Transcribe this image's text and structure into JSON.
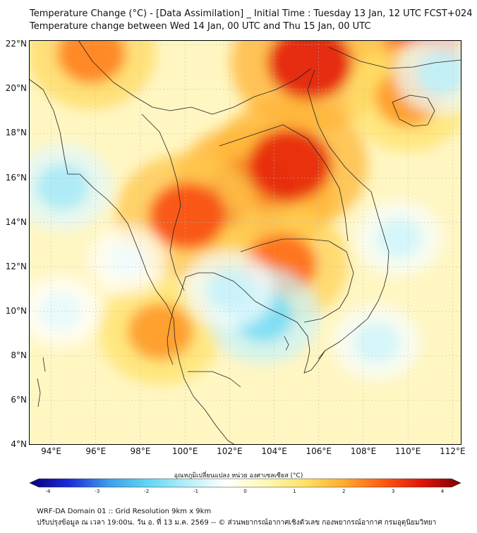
{
  "header": {
    "title_line1": "Temperature Change (°C) - [Data Assimilation] _ Initial Time : Tuesday 13 Jan, 12 UTC FCST+024",
    "title_line2": "Temperature change between Wed 14 Jan, 00 UTC and Thu 15 Jan, 00 UTC"
  },
  "map": {
    "lat_labels": [
      "22°N",
      "20°N",
      "18°N",
      "16°N",
      "14°N",
      "12°N",
      "10°N",
      "8°N",
      "6°N",
      "4°N"
    ],
    "lat_values": [
      22,
      20,
      18,
      16,
      14,
      12,
      10,
      8,
      6,
      4
    ],
    "lon_labels": [
      "94°E",
      "96°E",
      "98°E",
      "100°E",
      "102°E",
      "104°E",
      "106°E",
      "108°E",
      "110°E",
      "112°E"
    ],
    "lon_values": [
      94,
      96,
      98,
      100,
      102,
      104,
      106,
      108,
      110,
      112
    ],
    "extent": {
      "lon_min": 93,
      "lon_max": 112.4,
      "lat_min": 4,
      "lat_max": 22.2
    },
    "field": {
      "units": "°C",
      "hotspots": [
        {
          "lon": 103.0,
          "lat": 15.3,
          "value": 3.3
        },
        {
          "lon": 104.7,
          "lat": 16.6,
          "value": 3.1
        },
        {
          "lon": 105.6,
          "lat": 21.2,
          "value": 3.2
        },
        {
          "lon": 100.1,
          "lat": 14.3,
          "value": 2.7
        },
        {
          "lon": 95.8,
          "lat": 21.6,
          "value": 2.2
        },
        {
          "lon": 110.6,
          "lat": 21.8,
          "value": 2.6
        },
        {
          "lon": 104.3,
          "lat": 12.1,
          "value": 2.4
        },
        {
          "lon": 98.9,
          "lat": 9.1,
          "value": 2.0
        },
        {
          "lon": 110.0,
          "lat": 19.6,
          "value": 2.0
        },
        {
          "lon": 103.5,
          "lat": 9.8,
          "value": -1.6
        },
        {
          "lon": 94.5,
          "lat": 15.6,
          "value": -1.2
        },
        {
          "lon": 102.0,
          "lat": 11.0,
          "value": -0.9
        },
        {
          "lon": 111.5,
          "lat": 20.7,
          "value": -1.0
        },
        {
          "lon": 109.6,
          "lat": 13.3,
          "value": -0.8
        },
        {
          "lon": 108.6,
          "lat": 8.6,
          "value": -0.8
        },
        {
          "lon": 97.4,
          "lat": 12.3,
          "value": -0.5
        },
        {
          "lon": 94.4,
          "lat": 10.0,
          "value": -0.6
        }
      ]
    }
  },
  "colorbar": {
    "title": "อุณหภูมิเปลี่ยนแปลง หน่วย องศาเซลเซียส (°C)",
    "ticks": [
      "-4",
      "-3",
      "-2",
      "-1",
      "0",
      "1",
      "2",
      "3",
      "4"
    ],
    "range": [
      -4,
      4
    ],
    "colors": [
      "#060078",
      "#1a2cd8",
      "#3d9ce8",
      "#5fd6f4",
      "#b4eef8",
      "#ffffff",
      "#fff8b8",
      "#ffe26a",
      "#ffad2e",
      "#ff5a12",
      "#e0150a",
      "#7a0000"
    ]
  },
  "footer": {
    "line1": "WRF-DA Domain 01 :: Grid Resolution 9km x 9km",
    "line2": "ปรับปรุงข้อมูล ณ เวลา 19:00น. วัน อ. ที่ 13 ม.ค. 2569 -- © ส่วนพยากรณ์อากาศเชิงตัวเลข กองพยากรณ์อากาศ กรมอุตุนิยมวิทยา"
  }
}
